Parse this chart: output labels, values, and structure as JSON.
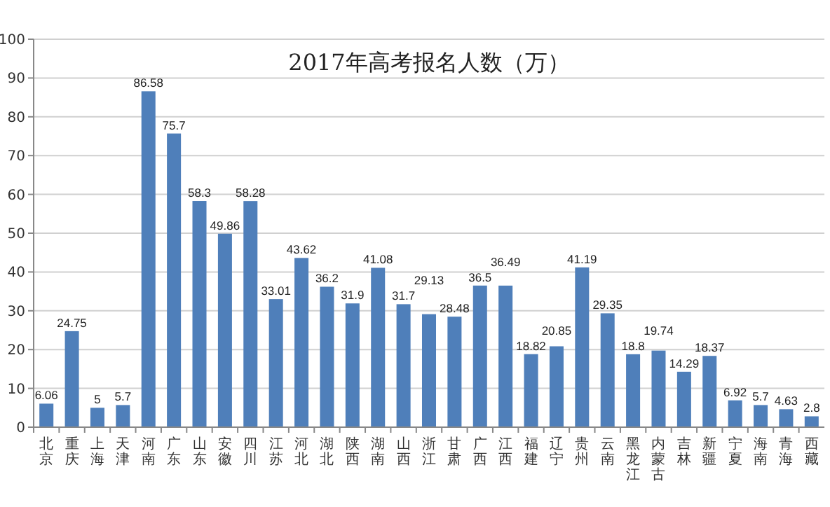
{
  "chart_data": {
    "type": "bar",
    "title": "2017年高考报名人数（万）",
    "categories": [
      "北京",
      "重庆",
      "上海",
      "天津",
      "河南",
      "广东",
      "山东",
      "安徽",
      "四川",
      "江苏",
      "河北",
      "湖北",
      "陕西",
      "湖南",
      "山西",
      "浙江",
      "甘肃",
      "广西",
      "江西",
      "福建",
      "辽宁",
      "贵州",
      "云南",
      "黑龙江",
      "内蒙古",
      "吉林",
      "新疆",
      "宁夏",
      "海南",
      "青海",
      "西藏"
    ],
    "values": [
      6.06,
      24.75,
      5,
      5.7,
      86.58,
      75.7,
      58.3,
      49.86,
      58.28,
      33.01,
      43.62,
      36.2,
      31.9,
      41.08,
      31.7,
      29.13,
      28.48,
      36.5,
      36.49,
      18.82,
      20.85,
      41.19,
      29.35,
      18.8,
      19.74,
      14.29,
      18.37,
      6.92,
      5.7,
      4.63,
      2.8
    ],
    "color": "#4f7fba",
    "ylim": [
      0,
      100
    ],
    "yticks": [
      0,
      10,
      20,
      30,
      40,
      50,
      60,
      70,
      80,
      90,
      100
    ],
    "grid": "y",
    "data_labels": true
  }
}
